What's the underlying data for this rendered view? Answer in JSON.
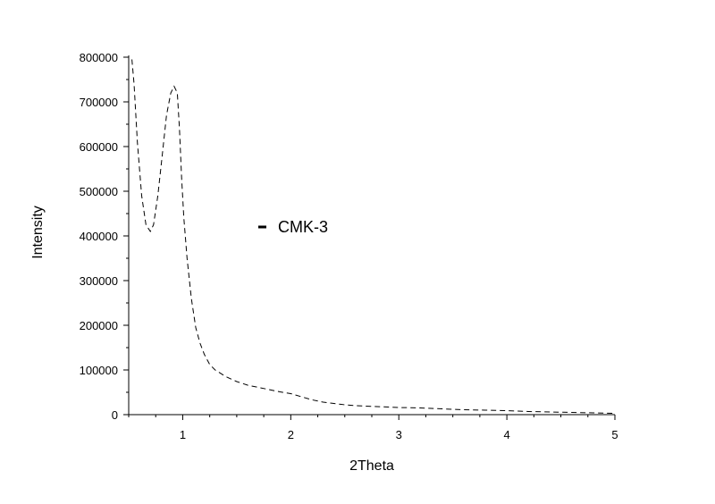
{
  "chart_data": {
    "type": "line",
    "title": "",
    "xlabel": "2Theta",
    "ylabel": "Intensity",
    "xlim": [
      0.5,
      5
    ],
    "ylim": [
      0,
      800000
    ],
    "x_ticks": [
      1,
      2,
      3,
      4,
      5
    ],
    "y_ticks": [
      0,
      100000,
      200000,
      300000,
      400000,
      500000,
      600000,
      700000,
      800000
    ],
    "x_minor_step": 0.25,
    "y_minor_step": 50000,
    "grid": false,
    "legend_placement": "center",
    "series": [
      {
        "name": "CMK-3",
        "color": "#000000",
        "style": "dashed",
        "x": [
          0.53,
          0.55,
          0.58,
          0.62,
          0.66,
          0.7,
          0.73,
          0.77,
          0.81,
          0.85,
          0.89,
          0.92,
          0.95,
          0.97,
          0.99,
          1.01,
          1.04,
          1.08,
          1.12,
          1.16,
          1.2,
          1.25,
          1.3,
          1.4,
          1.5,
          1.6,
          1.7,
          1.8,
          1.9,
          2.0,
          2.1,
          2.2,
          2.3,
          2.4,
          2.5,
          2.6,
          2.8,
          3.0,
          3.2,
          3.4,
          3.6,
          3.8,
          4.0,
          4.2,
          4.4,
          4.6,
          4.8,
          5.0
        ],
        "y": [
          795000,
          740000,
          610000,
          490000,
          425000,
          410000,
          425000,
          490000,
          580000,
          670000,
          720000,
          735000,
          720000,
          640000,
          530000,
          440000,
          350000,
          260000,
          195000,
          160000,
          135000,
          112000,
          100000,
          85000,
          74000,
          66000,
          61000,
          56000,
          51000,
          47000,
          40000,
          33000,
          28000,
          25000,
          22000,
          20000,
          18000,
          16000,
          15000,
          13000,
          11000,
          10000,
          9000,
          7000,
          6000,
          5000,
          4000,
          3000
        ]
      }
    ]
  }
}
